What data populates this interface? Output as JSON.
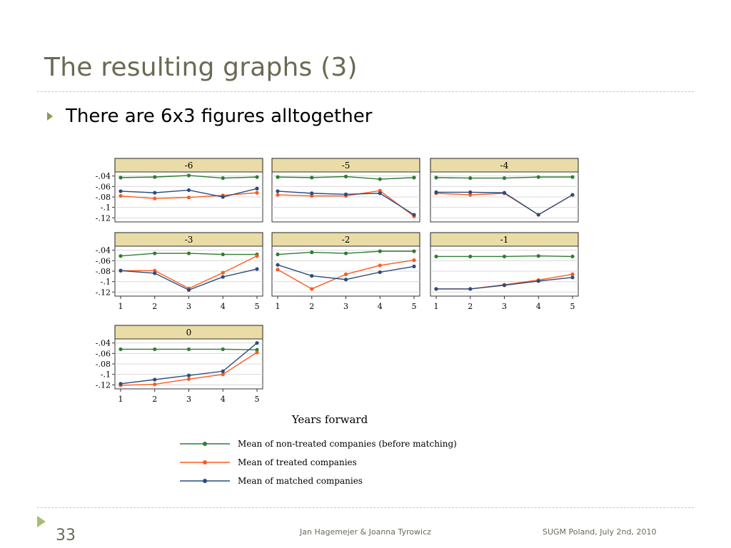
{
  "slide": {
    "title": "The resulting graphs (3)",
    "bullet": "There are 6x3 figures alltogether",
    "page_number": "33",
    "authors": "Jan Hagemejer & Joanna Tyrowicz",
    "event": "SUGM Poland, July 2nd, 2010"
  },
  "chart_data": {
    "type": "line",
    "xlabel": "Years forward",
    "x": [
      1,
      2,
      3,
      4,
      5
    ],
    "ytick_labels": [
      "-.04",
      "-.06",
      "-.08",
      "-.1",
      "-.12"
    ],
    "ylim": [
      -0.125,
      -0.035
    ],
    "colors": {
      "non_treated": "#2e7d32",
      "treated": "#ff5a1f",
      "matched": "#2b4c7e",
      "panel_header": "#e9dca6"
    },
    "legend": [
      "Mean of non-treated companies (before matching)",
      "Mean of treated companies",
      "Mean of matched companies"
    ],
    "panels": [
      {
        "label": "-6",
        "non_treated": [
          -0.043,
          -0.042,
          -0.039,
          -0.044,
          -0.042
        ],
        "treated": [
          -0.078,
          -0.083,
          -0.081,
          -0.077,
          -0.072
        ],
        "matched": [
          -0.069,
          -0.072,
          -0.067,
          -0.08,
          -0.064
        ]
      },
      {
        "label": "-5",
        "non_treated": [
          -0.042,
          -0.043,
          -0.041,
          -0.046,
          -0.043
        ],
        "treated": [
          -0.076,
          -0.078,
          -0.078,
          -0.068,
          -0.117
        ],
        "matched": [
          -0.069,
          -0.073,
          -0.075,
          -0.073,
          -0.114
        ]
      },
      {
        "label": "-4",
        "non_treated": [
          -0.043,
          -0.044,
          -0.044,
          -0.042,
          -0.042
        ],
        "treated": [
          -0.073,
          -0.076,
          -0.073,
          -0.114,
          -0.076
        ],
        "matched": [
          -0.071,
          -0.071,
          -0.072,
          -0.114,
          -0.076
        ]
      },
      {
        "label": "-3",
        "non_treated": [
          -0.051,
          -0.046,
          -0.046,
          -0.048,
          -0.048
        ],
        "treated": [
          -0.079,
          -0.079,
          -0.113,
          -0.083,
          -0.051
        ],
        "matched": [
          -0.079,
          -0.084,
          -0.116,
          -0.091,
          -0.076
        ]
      },
      {
        "label": "-2",
        "non_treated": [
          -0.048,
          -0.044,
          -0.046,
          -0.042,
          -0.042
        ],
        "treated": [
          -0.077,
          -0.114,
          -0.086,
          -0.069,
          -0.059
        ],
        "matched": [
          -0.068,
          -0.089,
          -0.096,
          -0.082,
          -0.071
        ]
      },
      {
        "label": "-1",
        "non_treated": [
          -0.052,
          -0.052,
          -0.052,
          -0.051,
          -0.052
        ],
        "treated": [
          -0.114,
          -0.114,
          -0.106,
          -0.097,
          -0.086
        ],
        "matched": [
          -0.114,
          -0.114,
          -0.107,
          -0.099,
          -0.092
        ]
      },
      {
        "label": "0",
        "non_treated": [
          -0.052,
          -0.052,
          -0.052,
          -0.052,
          -0.053
        ],
        "treated": [
          -0.121,
          -0.119,
          -0.109,
          -0.1,
          -0.058
        ],
        "matched": [
          -0.118,
          -0.11,
          -0.102,
          -0.094,
          -0.04
        ]
      }
    ]
  }
}
